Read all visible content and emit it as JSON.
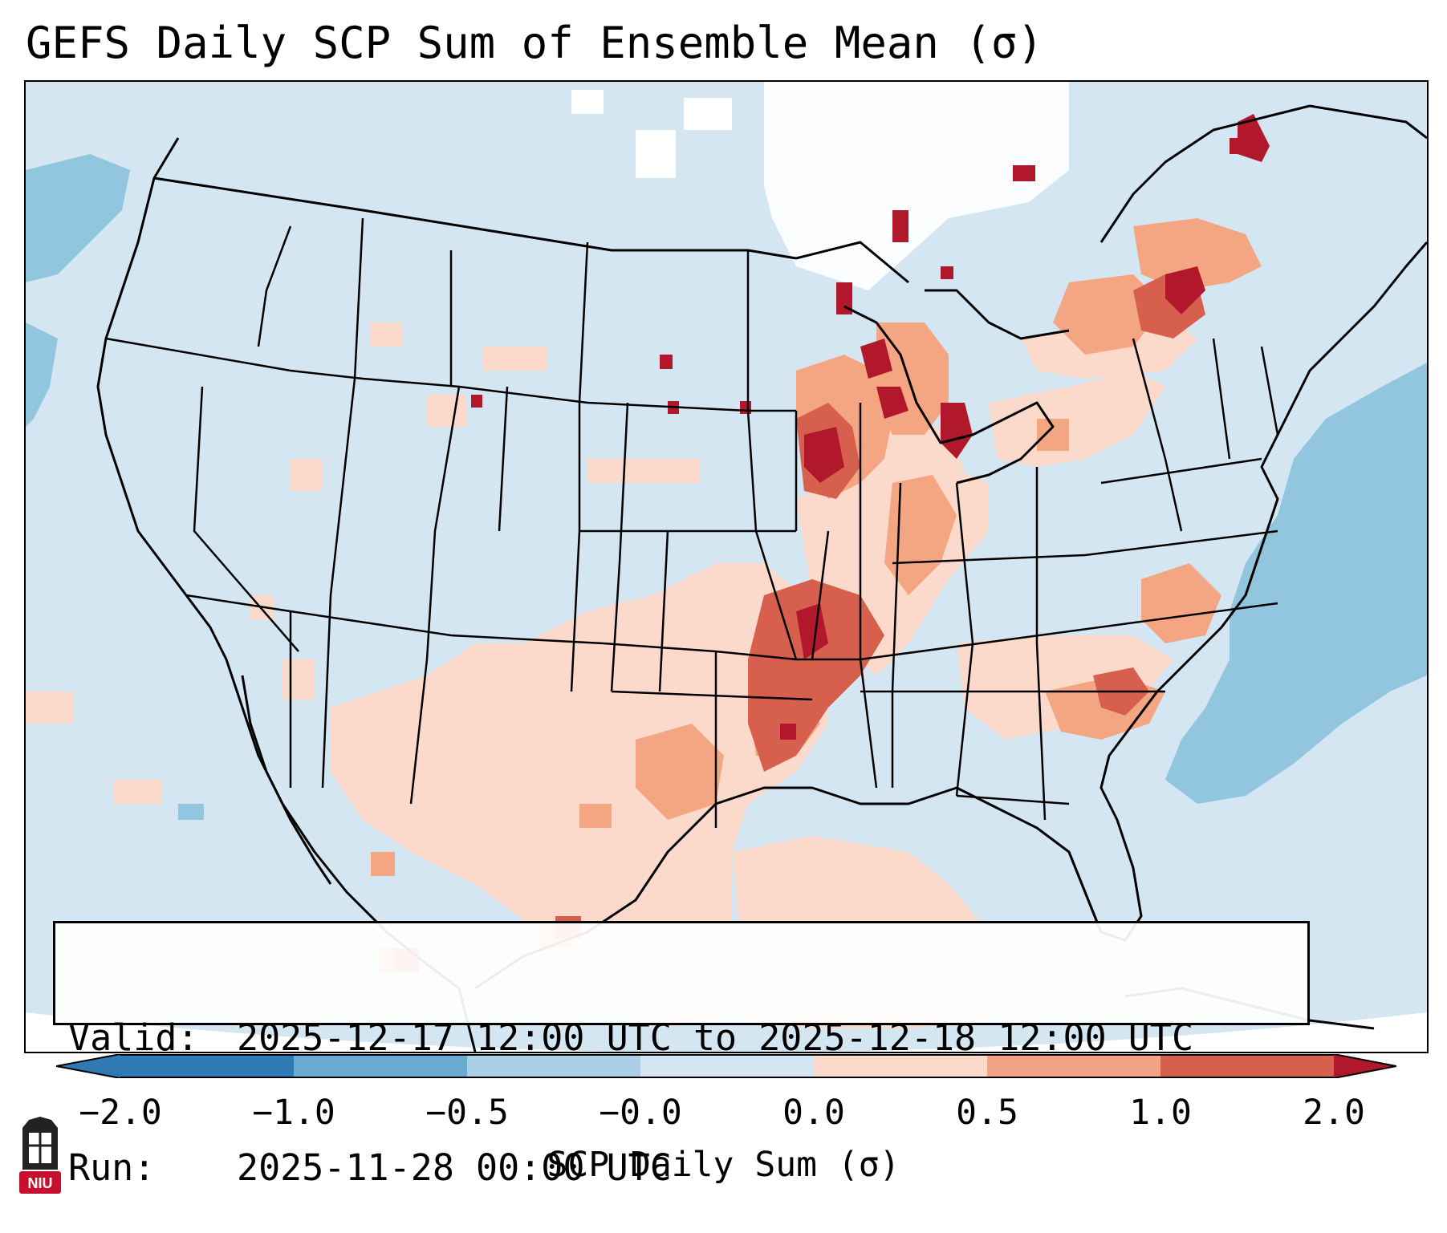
{
  "title": "GEFS Daily SCP Sum of Ensemble Mean (σ)",
  "info": {
    "valid_label": "Valid:",
    "valid_value": "2025-12-17 12:00 UTC to 2025-12-18 12:00 UTC",
    "run_label": "Run:",
    "run_value": "2025-11-28 00:00 UTC"
  },
  "colorbar": {
    "label": "SCP Daily Sum (σ)",
    "ticks": [
      "−2.0",
      "−1.0",
      "−0.5",
      "−0.0",
      "0.0",
      "0.5",
      "1.0",
      "2.0"
    ],
    "colors": [
      "#2f79b5",
      "#6aaad3",
      "#a9d0e6",
      "#d3e6f1",
      "#fbdacb",
      "#f2a486",
      "#d5604d",
      "#b2182b"
    ]
  },
  "map": {
    "background_color": "#d3e6f1",
    "outline_color": "#000000"
  },
  "logo": {
    "text": "NIU",
    "color": "#c8102e"
  }
}
